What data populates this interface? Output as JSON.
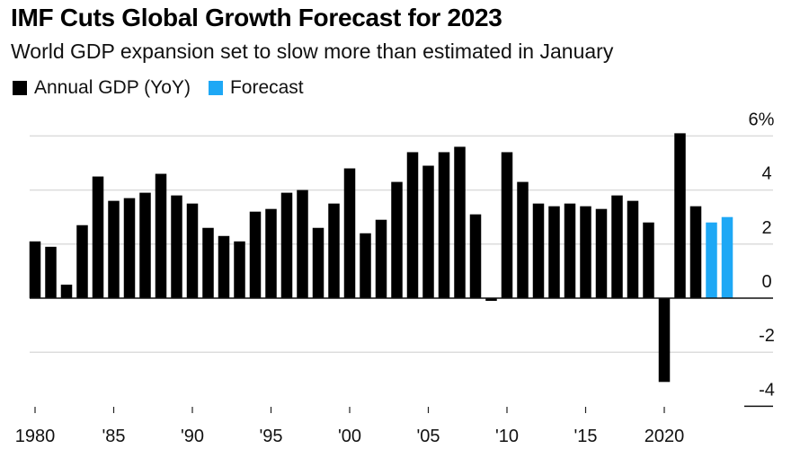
{
  "header": {
    "title": "IMF Cuts Global Growth Forecast for 2023",
    "subtitle": "World GDP expansion set to slow more than estimated in January"
  },
  "legend": [
    {
      "label": "Annual GDP (YoY)",
      "color": "#000000"
    },
    {
      "label": "Forecast",
      "color": "#1EA8F5"
    }
  ],
  "chart_data": {
    "type": "bar",
    "title": "IMF Cuts Global Growth Forecast for 2023",
    "subtitle": "World GDP expansion set to slow more than estimated in January",
    "xlabel": "",
    "ylabel": "",
    "ylim": [
      -4,
      6
    ],
    "grid": true,
    "legend_position": "top-left",
    "y_axis_position": "right",
    "y_ticks": [
      6,
      4,
      2,
      0,
      -2,
      -4
    ],
    "y_tick_labels": [
      "6%",
      "4",
      "2",
      "0",
      "-2",
      "-4"
    ],
    "x_ticks": [
      1980,
      1985,
      1990,
      1995,
      2000,
      2005,
      2010,
      2015,
      2020
    ],
    "x_tick_labels": [
      "1980",
      "'85",
      "'90",
      "'95",
      "'00",
      "'05",
      "'10",
      "'15",
      "2020"
    ],
    "categories": [
      1980,
      1981,
      1982,
      1983,
      1984,
      1985,
      1986,
      1987,
      1988,
      1989,
      1990,
      1991,
      1992,
      1993,
      1994,
      1995,
      1996,
      1997,
      1998,
      1999,
      2000,
      2001,
      2002,
      2003,
      2004,
      2005,
      2006,
      2007,
      2008,
      2009,
      2010,
      2011,
      2012,
      2013,
      2014,
      2015,
      2016,
      2017,
      2018,
      2019,
      2020,
      2021,
      2022,
      2023,
      2024
    ],
    "series": [
      {
        "name": "Annual GDP (YoY)",
        "color": "#000000",
        "values": [
          2.1,
          1.9,
          0.5,
          2.7,
          4.5,
          3.6,
          3.7,
          3.9,
          4.6,
          3.8,
          3.5,
          2.6,
          2.3,
          2.1,
          3.2,
          3.3,
          3.9,
          4.0,
          2.6,
          3.5,
          4.8,
          2.4,
          2.9,
          4.3,
          5.4,
          4.9,
          5.4,
          5.6,
          3.1,
          -0.1,
          5.4,
          4.3,
          3.5,
          3.4,
          3.5,
          3.4,
          3.3,
          3.8,
          3.6,
          2.8,
          -3.1,
          6.1,
          3.4,
          null,
          null
        ]
      },
      {
        "name": "Forecast",
        "color": "#1EA8F5",
        "values": [
          null,
          null,
          null,
          null,
          null,
          null,
          null,
          null,
          null,
          null,
          null,
          null,
          null,
          null,
          null,
          null,
          null,
          null,
          null,
          null,
          null,
          null,
          null,
          null,
          null,
          null,
          null,
          null,
          null,
          null,
          null,
          null,
          null,
          null,
          null,
          null,
          null,
          null,
          null,
          null,
          null,
          null,
          null,
          2.8,
          3.0
        ]
      }
    ]
  }
}
